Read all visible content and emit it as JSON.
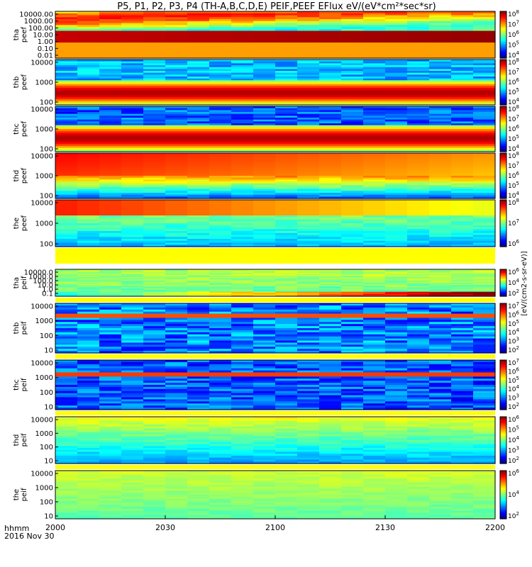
{
  "title": "P5, P1, P2, P3, P4 (TH-A,B,C,D,E) PEIF,PEEF EFlux eV/(eV*cm²*sec*sr)",
  "x_axis": {
    "label_line1": "hhmm",
    "label_line2": "2016 Nov 30",
    "ticks": [
      "2000",
      "2030",
      "2100",
      "2130",
      "2200"
    ]
  },
  "colorbar_title": "[eV/(cm2-s-sr-eV)]",
  "chart_data": [
    {
      "type": "heatmap",
      "probe": "tha",
      "species": "peef",
      "ylabels": [
        "tha",
        "peef"
      ],
      "y_ticks": [
        "10000.00",
        "1000.00",
        "100.00",
        "10.00",
        "1.00",
        "0.10",
        "0.01"
      ],
      "color_ticks": [
        "10^4",
        "10^5",
        "10^6",
        "10^7",
        "10^8"
      ]
    },
    {
      "type": "heatmap",
      "probe": "thb",
      "species": "peef",
      "ylabels": [
        "thb",
        "peef"
      ],
      "y_ticks": [
        "10000",
        "1000",
        "100"
      ],
      "color_ticks": [
        "10^4",
        "10^5",
        "10^6",
        "10^7",
        "10^8"
      ]
    },
    {
      "type": "heatmap",
      "probe": "thc",
      "species": "peef",
      "ylabels": [
        "thc",
        "peef"
      ],
      "y_ticks": [
        "10000",
        "1000",
        "100"
      ],
      "color_ticks": [
        "10^4",
        "10^5",
        "10^6",
        "10^7",
        "10^8"
      ]
    },
    {
      "type": "heatmap",
      "probe": "thd",
      "species": "peef",
      "ylabels": [
        "thd",
        "peef"
      ],
      "y_ticks": [
        "10000",
        "1000",
        "100"
      ],
      "color_ticks": [
        "10^4",
        "10^5",
        "10^6",
        "10^7",
        "10^8"
      ]
    },
    {
      "type": "heatmap",
      "probe": "the",
      "species": "peef",
      "ylabels": [
        "the",
        "peef"
      ],
      "y_ticks": [
        "10000",
        "1000",
        "100"
      ],
      "color_ticks": [
        "10^6",
        "10^7",
        "10^8"
      ]
    },
    {
      "type": "heatmap",
      "probe": "tha",
      "species": "peif",
      "ylabels": [
        "tha",
        "peif"
      ],
      "y_ticks": [
        "10000.0",
        "1000.0",
        "100.0",
        "10.0",
        "1.0",
        "0.1"
      ],
      "color_ticks": [
        "10^2",
        "10^4",
        "10^6"
      ]
    },
    {
      "type": "heatmap",
      "probe": "thb",
      "species": "peif",
      "ylabels": [
        "thb",
        "peif"
      ],
      "y_ticks": [
        "10000",
        "1000",
        "100",
        "10"
      ],
      "color_ticks": [
        "10^2",
        "10^3",
        "10^4",
        "10^5",
        "10^6",
        "10^7"
      ]
    },
    {
      "type": "heatmap",
      "probe": "thc",
      "species": "peif",
      "ylabels": [
        "thc",
        "peif"
      ],
      "y_ticks": [
        "10000",
        "1000",
        "100",
        "10"
      ],
      "color_ticks": [
        "10^2",
        "10^3",
        "10^4",
        "10^5",
        "10^6",
        "10^7"
      ]
    },
    {
      "type": "heatmap",
      "probe": "thd",
      "species": "peif",
      "ylabels": [
        "thd",
        "peif"
      ],
      "y_ticks": [
        "10000",
        "1000",
        "100",
        "10"
      ],
      "color_ticks": [
        "10^2",
        "10^3",
        "10^4",
        "10^5",
        "10^6"
      ]
    },
    {
      "type": "heatmap",
      "probe": "the",
      "species": "peif",
      "ylabels": [
        "the",
        "peif"
      ],
      "y_ticks": [
        "10000",
        "1000",
        "100",
        "10"
      ],
      "color_ticks": [
        "10^2",
        "10^4",
        "10^6"
      ]
    }
  ]
}
